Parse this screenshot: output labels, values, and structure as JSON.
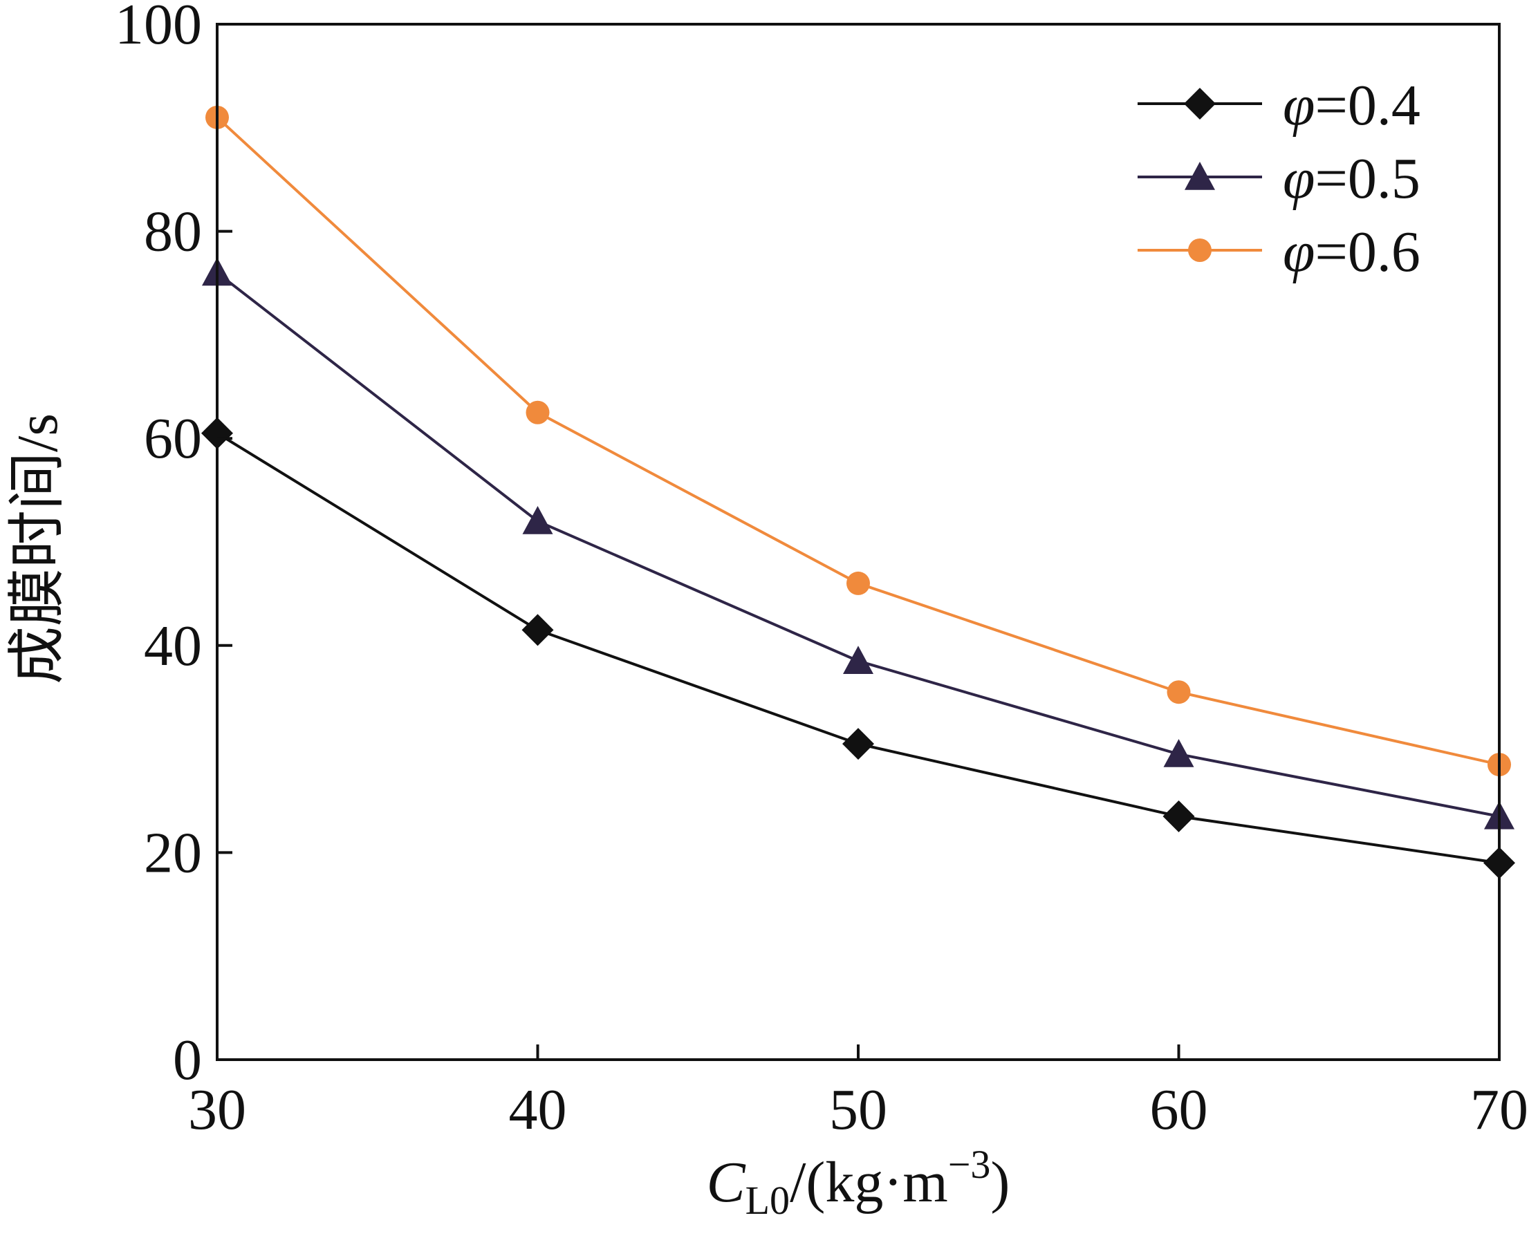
{
  "chart_data": {
    "type": "line",
    "x": [
      30,
      40,
      50,
      60,
      70
    ],
    "xlim": [
      30,
      70
    ],
    "ylim": [
      0,
      100
    ],
    "xticks": [
      30,
      40,
      50,
      60,
      70
    ],
    "yticks": [
      0,
      20,
      40,
      60,
      80,
      100
    ],
    "xlabel": {
      "symbol": "C",
      "subscript": "L0",
      "unit_open": "/(kg·m",
      "exponent": "−3",
      "unit_close": ")"
    },
    "ylabel": "成膜时间/s",
    "grid": false,
    "legend_position": "top-right",
    "series": [
      {
        "name": "φ=0.4",
        "name_symbol": "φ",
        "name_value": "=0.4",
        "marker": "diamond",
        "color": "#111111",
        "values": [
          60.5,
          41.5,
          30.5,
          23.5,
          19
        ]
      },
      {
        "name": "φ=0.5",
        "name_symbol": "φ",
        "name_value": "=0.5",
        "marker": "triangle",
        "color": "#2e2547",
        "values": [
          76,
          52,
          38.5,
          29.5,
          23.5
        ]
      },
      {
        "name": "φ=0.6",
        "name_symbol": "φ",
        "name_value": "=0.6",
        "marker": "circle",
        "color": "#f08a3c",
        "values": [
          91,
          62.5,
          46,
          35.5,
          28.5
        ]
      }
    ]
  }
}
